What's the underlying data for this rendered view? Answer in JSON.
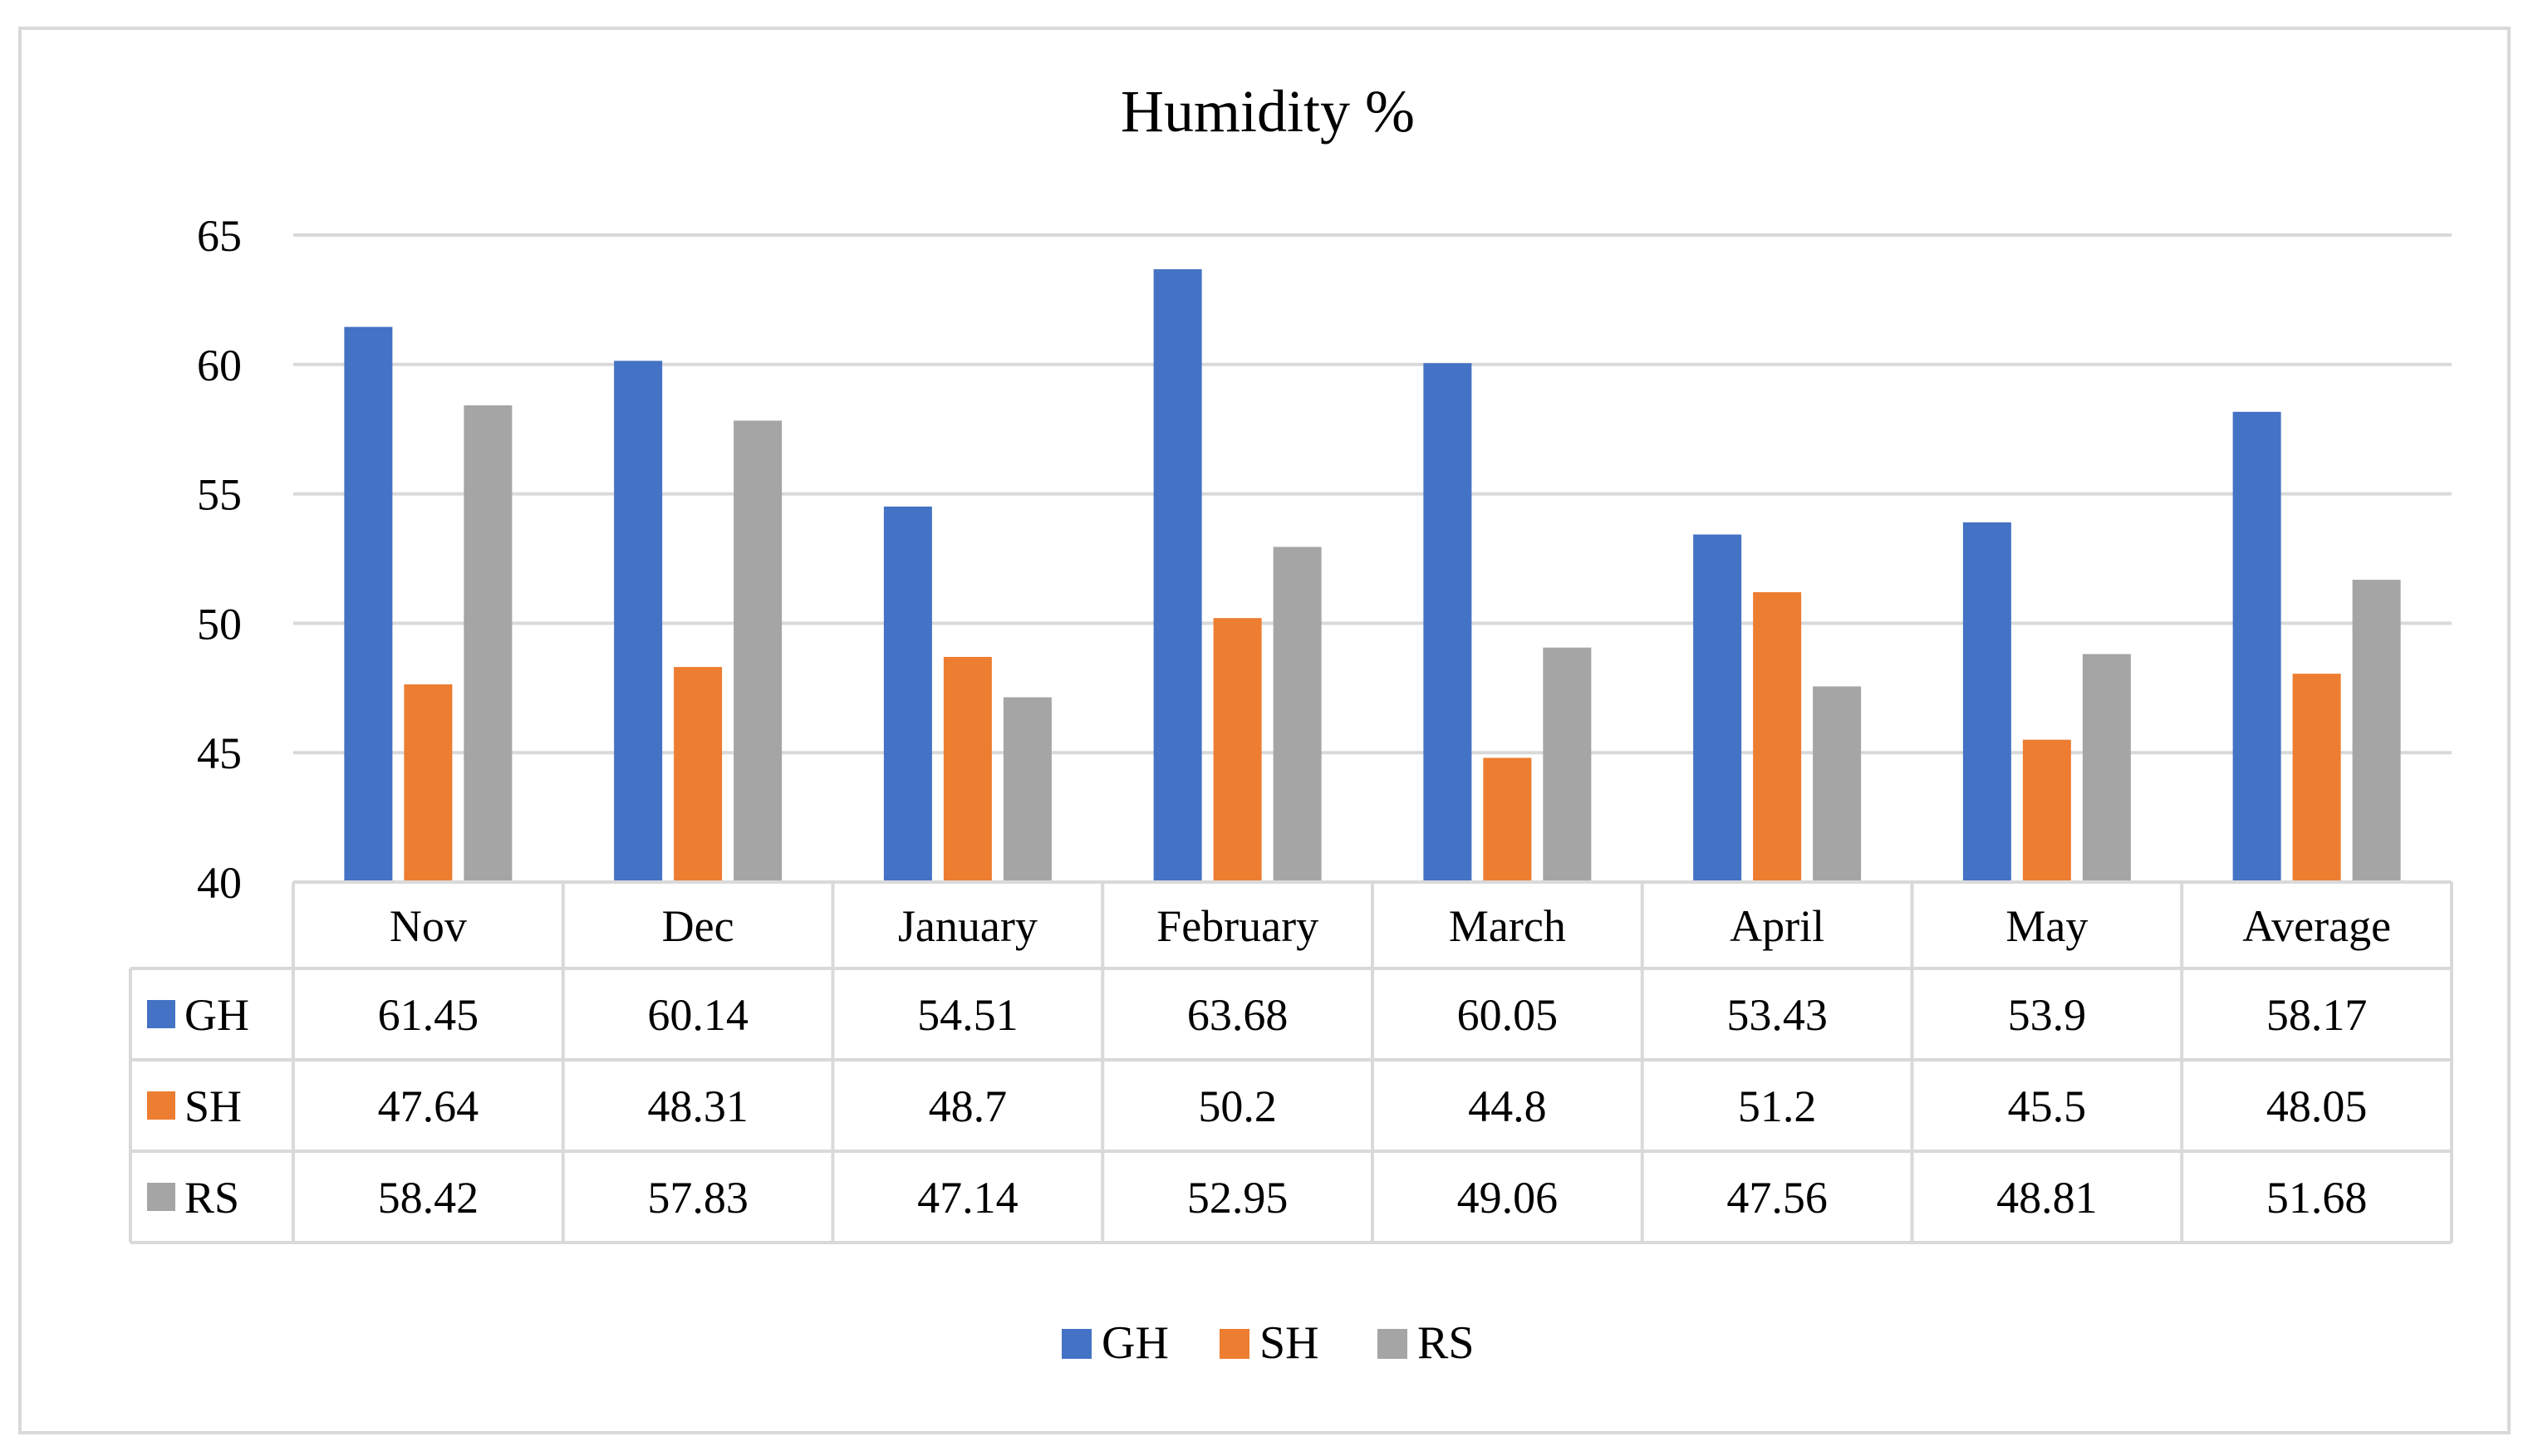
{
  "chart_data": {
    "type": "bar",
    "title": "Humidity %",
    "xlabel": "",
    "ylabel": "",
    "ylim": [
      40,
      65
    ],
    "y_ticks": [
      40,
      45,
      50,
      55,
      60,
      65
    ],
    "grid": true,
    "legend_position": "bottom",
    "data_table": true,
    "categories": [
      "Nov",
      "Dec",
      "January",
      "February",
      "March",
      "April",
      "May",
      "Average"
    ],
    "series": [
      {
        "name": "GH",
        "color": "#4472c4",
        "values": [
          61.45,
          60.14,
          54.51,
          63.68,
          60.05,
          53.43,
          53.9,
          58.17
        ]
      },
      {
        "name": "SH",
        "color": "#ed7d31",
        "values": [
          47.64,
          48.31,
          48.7,
          50.2,
          44.8,
          51.2,
          45.5,
          48.05
        ]
      },
      {
        "name": "RS",
        "color": "#a5a5a5",
        "values": [
          58.42,
          57.83,
          47.14,
          52.95,
          49.06,
          47.56,
          48.81,
          51.68
        ]
      }
    ],
    "gridline_color": "#d9d9d9"
  }
}
